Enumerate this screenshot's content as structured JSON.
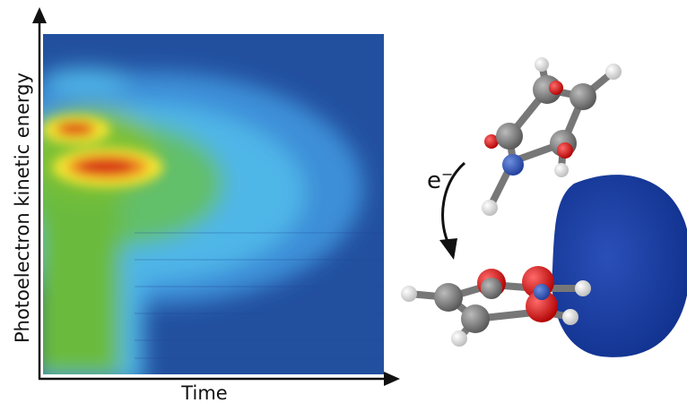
{
  "axes": {
    "x_label": "Time",
    "y_label": "Photoelectron kinetic energy"
  },
  "annotation": {
    "base": "e",
    "superscript": "−"
  }
}
